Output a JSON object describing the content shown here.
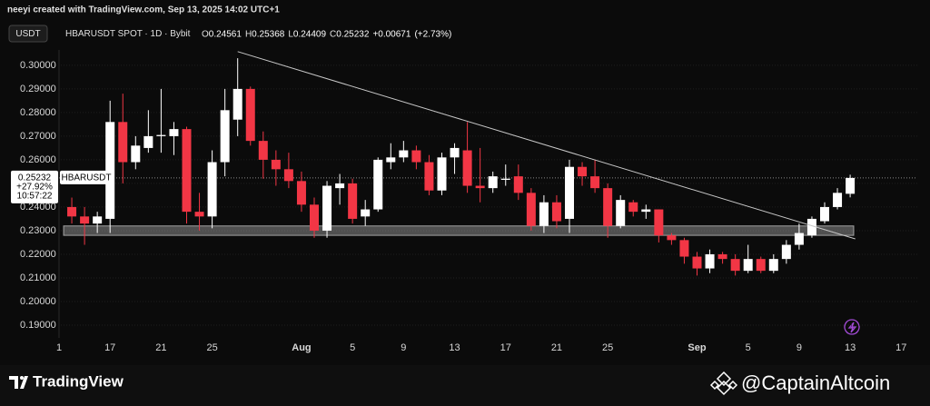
{
  "header": {
    "credit": "neeyi created with TradingView.com, Sep 13, 2025 14:02 UTC+1",
    "currency_button": "USDT",
    "instrument": "HBARUSDT SPOT · 1D · Bybit",
    "ohlc": [
      {
        "label": "O",
        "value": 0.24561
      },
      {
        "label": "H",
        "value": 0.25368
      },
      {
        "label": "L",
        "value": 0.24409
      },
      {
        "label": "C",
        "value": 0.25232
      }
    ],
    "change": "+0.00671",
    "change_pct": "(+2.73%)"
  },
  "footer": {
    "brand": "TradingView",
    "watermark": "@CaptainAltcoin"
  },
  "chart_data": {
    "type": "candlestick",
    "categories": [
      "1",
      null,
      null,
      null,
      "17",
      null,
      null,
      null,
      "21",
      null,
      null,
      null,
      "25",
      null,
      null,
      null,
      null,
      null,
      null,
      "Aug",
      null,
      null,
      null,
      "5",
      null,
      null,
      null,
      "9",
      null,
      null,
      null,
      "13",
      null,
      null,
      null,
      "17",
      null,
      null,
      null,
      "21",
      null,
      null,
      null,
      "25",
      null,
      null,
      null,
      null,
      null,
      null,
      "Sep",
      null,
      null,
      null,
      "5",
      null,
      null,
      null,
      "9",
      null,
      null,
      null,
      "13",
      null,
      null,
      null,
      "17"
    ],
    "open": [
      null,
      0.24,
      0.236,
      0.233,
      0.235,
      0.276,
      0.259,
      0.265,
      0.27,
      0.27,
      0.273,
      0.238,
      0.236,
      0.259,
      0.277,
      0.29,
      0.268,
      0.26,
      0.256,
      0.251,
      0.241,
      0.23,
      0.248,
      0.25,
      0.236,
      0.239,
      0.259,
      0.261,
      0.264,
      0.259,
      0.247,
      0.261,
      0.264,
      0.249,
      0.248,
      0.2515,
      0.253,
      0.246,
      0.232,
      0.242,
      0.235,
      0.257,
      0.253,
      0.248,
      0.232,
      0.242,
      0.238,
      0.239,
      0.228,
      0.226,
      0.219,
      0.214,
      0.22,
      0.218,
      0.213,
      0.218,
      0.213,
      0.218,
      0.224,
      0.228,
      0.234,
      0.24,
      0.24561,
      null,
      null,
      null,
      null
    ],
    "high": [
      null,
      0.244,
      0.24,
      0.238,
      0.285,
      0.288,
      0.27,
      0.281,
      0.29,
      0.276,
      0.274,
      0.246,
      0.264,
      0.29,
      0.303,
      0.291,
      0.272,
      0.264,
      0.263,
      0.255,
      0.244,
      0.251,
      0.254,
      0.252,
      0.243,
      0.261,
      0.267,
      0.268,
      0.266,
      0.262,
      0.263,
      0.267,
      0.276,
      0.265,
      0.255,
      0.258,
      0.258,
      0.248,
      0.245,
      0.245,
      0.26,
      0.259,
      0.26,
      0.25,
      0.245,
      0.243,
      0.241,
      0.239,
      0.229,
      0.227,
      0.221,
      0.222,
      0.221,
      0.22,
      0.224,
      0.219,
      0.22,
      0.226,
      0.233,
      0.236,
      0.242,
      0.248,
      0.25368,
      null,
      null,
      null,
      null
    ],
    "low": [
      null,
      0.233,
      0.224,
      0.229,
      0.229,
      0.25,
      0.256,
      0.263,
      0.263,
      0.262,
      0.233,
      0.23,
      0.231,
      0.253,
      0.27,
      0.266,
      0.252,
      0.249,
      0.248,
      0.238,
      0.227,
      0.227,
      0.241,
      0.233,
      0.232,
      0.238,
      0.256,
      0.259,
      0.256,
      0.245,
      0.245,
      0.254,
      0.246,
      0.242,
      0.246,
      0.249,
      0.243,
      0.23,
      0.229,
      0.231,
      0.229,
      0.249,
      0.246,
      0.227,
      0.231,
      0.236,
      0.235,
      0.225,
      0.224,
      0.216,
      0.211,
      0.212,
      0.216,
      0.211,
      0.212,
      0.212,
      0.212,
      0.216,
      0.222,
      0.227,
      0.233,
      0.239,
      0.24409,
      null,
      null,
      null,
      null
    ],
    "close": [
      null,
      0.236,
      0.233,
      0.236,
      0.276,
      0.259,
      0.266,
      0.27,
      0.2705,
      0.273,
      0.238,
      0.236,
      0.259,
      0.281,
      0.29,
      0.268,
      0.26,
      0.256,
      0.251,
      0.241,
      0.23,
      0.249,
      0.25,
      0.235,
      0.239,
      0.26,
      0.261,
      0.264,
      0.259,
      0.247,
      0.261,
      0.265,
      0.249,
      0.248,
      0.253,
      0.252,
      0.246,
      0.232,
      0.242,
      0.234,
      0.257,
      0.253,
      0.248,
      0.232,
      0.243,
      0.238,
      0.239,
      0.228,
      0.226,
      0.219,
      0.214,
      0.22,
      0.218,
      0.213,
      0.218,
      0.213,
      0.218,
      0.224,
      0.229,
      0.235,
      0.24,
      0.246,
      0.25232,
      null,
      null,
      null,
      null
    ],
    "up_color": "#ffffff",
    "down_color": "#f23645",
    "ylim": [
      0.1846,
      0.3065
    ],
    "yticks": [
      {
        "value": 0.3,
        "label": "0.30000"
      },
      {
        "value": 0.29,
        "label": "0.29000"
      },
      {
        "value": 0.28,
        "label": "0.28000"
      },
      {
        "value": 0.27,
        "label": "0.27000"
      },
      {
        "value": 0.26,
        "label": "0.26000"
      },
      {
        "value": 0.25,
        "label": "0.25000"
      },
      {
        "value": 0.24,
        "label": "0.24000"
      },
      {
        "value": 0.23,
        "label": "0.23000"
      },
      {
        "value": 0.22,
        "label": "0.22000"
      },
      {
        "value": 0.21,
        "label": "0.21000"
      },
      {
        "value": 0.2,
        "label": "0.20000"
      },
      {
        "value": 0.19,
        "label": "0.19000"
      }
    ],
    "grid": true,
    "zone": {
      "low": 0.228,
      "high": 0.232,
      "color": "#d0d0d0"
    },
    "trendline": {
      "start_index": 14,
      "start_value": 0.3058,
      "end_index": 62.4,
      "end_value": 0.2265,
      "color": "#c8c8c8"
    },
    "price_label": {
      "value": 0.25232,
      "change": "+27.92%",
      "countdown": "10:57:22",
      "symbol": "HBARUSDT"
    }
  }
}
